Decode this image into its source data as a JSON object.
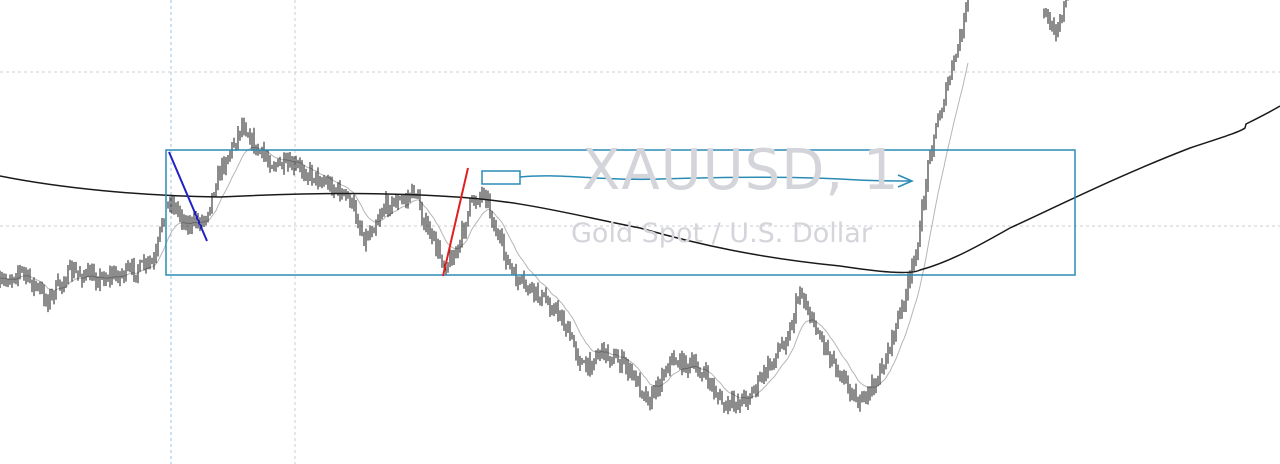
{
  "watermark": {
    "symbol": "XAUUSD, 1",
    "description": "Gold Spot / U.S. Dollar"
  },
  "colors": {
    "background": "#ffffff",
    "candle": "#1a1a1a",
    "ma_slow": "#1a1a1a",
    "ma_fast": "#b5b5b5",
    "range_box": "#2a8cb5",
    "trend_line_down": "#2020c8",
    "trend_line_up": "#e02020",
    "arrow": "#2a8cb5",
    "grid": "#c9ccd1",
    "watermark": "#d3d5da"
  },
  "chart_data": {
    "type": "candlestick",
    "title": "XAUUSD, 1",
    "subtitle": "Gold Spot / U.S. Dollar",
    "xlabel": "",
    "ylabel": "",
    "grid": "dashed, partial",
    "legend": "none",
    "series": [
      {
        "name": "",
        "type": "candlestick"
      },
      {
        "name": "",
        "type": "line",
        "role": "slow moving average"
      },
      {
        "name": "",
        "type": "line",
        "role": "fast moving average"
      }
    ],
    "annotations": [
      {
        "type": "rectangle",
        "label": "range box"
      },
      {
        "type": "trend line",
        "direction": "down"
      },
      {
        "type": "trend line",
        "direction": "up"
      },
      {
        "type": "arrow",
        "direction": "right"
      }
    ]
  }
}
